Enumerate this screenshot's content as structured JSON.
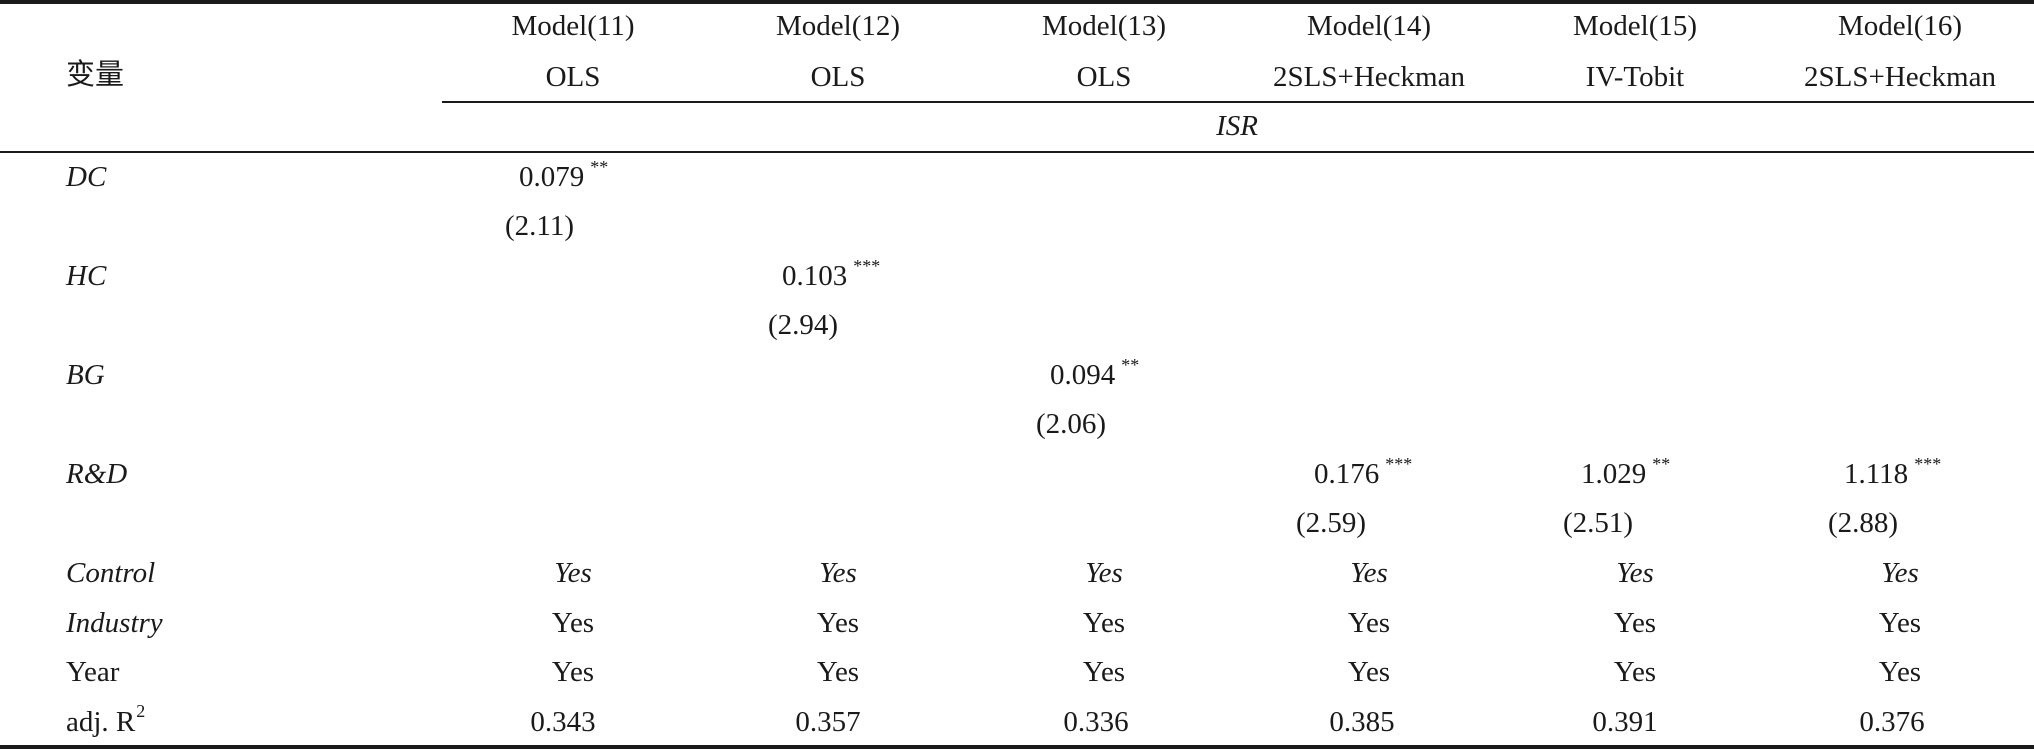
{
  "table": {
    "variable_header": "变量",
    "models": [
      {
        "name": "Model(11)",
        "method": "OLS"
      },
      {
        "name": "Model(12)",
        "method": "OLS"
      },
      {
        "name": "Model(13)",
        "method": "OLS"
      },
      {
        "name": "Model(14)",
        "method": "2SLS+Heckman"
      },
      {
        "name": "Model(15)",
        "method": "IV-Tobit"
      },
      {
        "name": "Model(16)",
        "method": "2SLS+Heckman"
      }
    ],
    "dependent_variable": "ISR",
    "coefficients": [
      {
        "label": "DC",
        "value": "0.079",
        "stars": "**",
        "t": "(2.11)"
      },
      {
        "label": "HC",
        "value": "0.103",
        "stars": "***",
        "t": "(2.94)"
      },
      {
        "label": "BG",
        "value": "0.094",
        "stars": "**",
        "t": "(2.06)"
      },
      {
        "label": "R&D",
        "m14": {
          "value": "0.176",
          "stars": "***",
          "t": "(2.59)"
        },
        "m15": {
          "value": "1.029",
          "stars": "**",
          "t": "(2.51)"
        },
        "m16": {
          "value": "1.118",
          "stars": "***",
          "t": "(2.88)"
        }
      }
    ],
    "controls": [
      {
        "label": "Control",
        "values": [
          "Yes",
          "Yes",
          "Yes",
          "Yes",
          "Yes",
          "Yes"
        ]
      },
      {
        "label": "Industry",
        "values": [
          "Yes",
          "Yes",
          "Yes",
          "Yes",
          "Yes",
          "Yes"
        ]
      },
      {
        "label": "Year",
        "values": [
          "Yes",
          "Yes",
          "Yes",
          "Yes",
          "Yes",
          "Yes"
        ]
      }
    ],
    "adj_r2": {
      "label": "adj. R",
      "sup": "2",
      "values": [
        "0.343",
        "0.357",
        "0.336",
        "0.385",
        "0.391",
        "0.376"
      ]
    }
  }
}
